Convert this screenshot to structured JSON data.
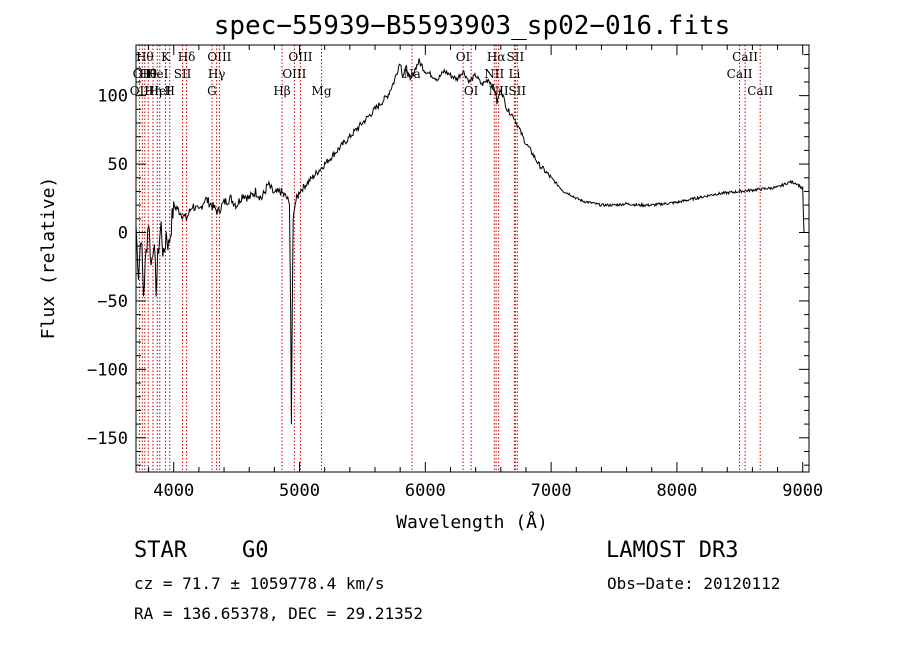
{
  "chart_data": {
    "type": "line",
    "title": "spec−55939−B5593903_sp02−016.fits",
    "xlabel": "Wavelength (Å)",
    "ylabel": "Flux (relative)",
    "xlim": [
      3700,
      9050
    ],
    "ylim": [
      -175,
      137
    ],
    "xticks": [
      {
        "value": 4000,
        "label": "4000"
      },
      {
        "value": 5000,
        "label": "5000"
      },
      {
        "value": 6000,
        "label": "6000"
      },
      {
        "value": 7000,
        "label": "7000"
      },
      {
        "value": 8000,
        "label": "8000"
      },
      {
        "value": 9000,
        "label": "9000"
      }
    ],
    "yticks": [
      {
        "value": 100,
        "label": "100"
      },
      {
        "value": 50,
        "label": "50"
      },
      {
        "value": 0,
        "label": "0"
      },
      {
        "value": -50,
        "label": "−50"
      },
      {
        "value": -100,
        "label": "−100"
      },
      {
        "value": -150,
        "label": "−150"
      }
    ],
    "series": [
      {
        "name": "spectrum",
        "x": [
          3700,
          3720,
          3740,
          3760,
          3780,
          3800,
          3820,
          3840,
          3860,
          3880,
          3900,
          3920,
          3940,
          3960,
          3980,
          4000,
          4050,
          4100,
          4150,
          4200,
          4250,
          4300,
          4350,
          4400,
          4450,
          4500,
          4550,
          4600,
          4650,
          4700,
          4750,
          4800,
          4850,
          4900,
          4920,
          4930,
          4935,
          4940,
          4945,
          4950,
          4960,
          5000,
          5050,
          5100,
          5150,
          5200,
          5250,
          5300,
          5350,
          5400,
          5450,
          5500,
          5550,
          5600,
          5650,
          5700,
          5750,
          5800,
          5820,
          5850,
          5880,
          5900,
          5920,
          5950,
          6000,
          6050,
          6100,
          6150,
          6200,
          6250,
          6300,
          6350,
          6400,
          6450,
          6500,
          6550,
          6570,
          6600,
          6650,
          6700,
          6750,
          6800,
          6850,
          6900,
          6950,
          7000,
          7050,
          7100,
          7150,
          7200,
          7250,
          7300,
          7350,
          7400,
          7450,
          7500,
          7600,
          7700,
          7800,
          7900,
          8000,
          8100,
          8200,
          8300,
          8400,
          8500,
          8600,
          8700,
          8800,
          8850,
          8900,
          8950,
          9000,
          9010
        ],
        "y": [
          5,
          -30,
          0,
          -45,
          -15,
          10,
          -25,
          -5,
          -40,
          -10,
          5,
          -20,
          0,
          -10,
          5,
          20,
          15,
          10,
          20,
          15,
          25,
          20,
          15,
          22,
          25,
          20,
          28,
          25,
          30,
          25,
          35,
          28,
          30,
          25,
          20,
          -60,
          -140,
          -80,
          -30,
          10,
          20,
          30,
          35,
          40,
          45,
          50,
          55,
          60,
          65,
          70,
          75,
          80,
          85,
          90,
          95,
          100,
          110,
          125,
          115,
          120,
          110,
          115,
          120,
          125,
          118,
          115,
          112,
          118,
          115,
          112,
          118,
          110,
          115,
          108,
          112,
          105,
          95,
          105,
          90,
          85,
          75,
          65,
          58,
          50,
          45,
          40,
          35,
          30,
          28,
          25,
          23,
          22,
          21,
          20,
          20,
          20,
          21,
          20,
          20,
          21,
          22,
          24,
          26,
          28,
          29,
          30,
          31,
          32,
          33,
          35,
          37,
          36,
          32,
          0
        ]
      }
    ],
    "spectral_lines": [
      {
        "x": 3727,
        "label": "OII",
        "row": 2
      },
      {
        "x": 3750,
        "label": "OII",
        "row": 1
      },
      {
        "x": 3770,
        "label": "Hθ",
        "row": 0
      },
      {
        "x": 3797,
        "label": "Hθ",
        "row": 1
      },
      {
        "x": 3835,
        "label": "Hη",
        "row": 2
      },
      {
        "x": 3869,
        "label": "HeI",
        "row": 1
      },
      {
        "x": 3889,
        "label": "HeI",
        "row": 2
      },
      {
        "x": 3934,
        "label": "K",
        "row": 0
      },
      {
        "x": 3968,
        "label": "H",
        "row": 2
      },
      {
        "x": 4070,
        "label": "SII",
        "row": 1
      },
      {
        "x": 4102,
        "label": "Hδ",
        "row": 0
      },
      {
        "x": 4304,
        "label": "G",
        "row": 2
      },
      {
        "x": 4341,
        "label": "Hγ",
        "row": 1
      },
      {
        "x": 4363,
        "label": "OIII",
        "row": 0
      },
      {
        "x": 4861,
        "label": "Hβ",
        "row": 2
      },
      {
        "x": 4959,
        "label": "OIII",
        "row": 1
      },
      {
        "x": 5007,
        "label": "OIII",
        "row": 0
      },
      {
        "x": 5175,
        "label": "Mg",
        "row": 2
      },
      {
        "x": 5894,
        "label": "Na",
        "row": 1
      },
      {
        "x": 6300,
        "label": "OI",
        "row": 0
      },
      {
        "x": 6364,
        "label": "OI",
        "row": 2
      },
      {
        "x": 6548,
        "label": "NII",
        "row": 1
      },
      {
        "x": 6563,
        "label": "Hα",
        "row": 0
      },
      {
        "x": 6583,
        "label": "NII",
        "row": 2
      },
      {
        "x": 6708,
        "label": "Li",
        "row": 1
      },
      {
        "x": 6716,
        "label": "SII",
        "row": 0
      },
      {
        "x": 6731,
        "label": "SII",
        "row": 2
      },
      {
        "x": 8498,
        "label": "CaII",
        "row": 1
      },
      {
        "x": 8542,
        "label": "CaII",
        "row": 0
      },
      {
        "x": 8662,
        "label": "CaII",
        "row": 2
      }
    ],
    "grid": false,
    "line_color": "#000000",
    "marker_color": "#cc0000"
  },
  "info": {
    "class_label": "STAR",
    "subclass": "G0",
    "survey": "LAMOST DR3",
    "redshift": "cz = 71.7 ± 1059778.4 km/s",
    "obs_date": "Obs−Date: 20120112",
    "coords": "RA = 136.65378, DEC =  29.21352"
  }
}
